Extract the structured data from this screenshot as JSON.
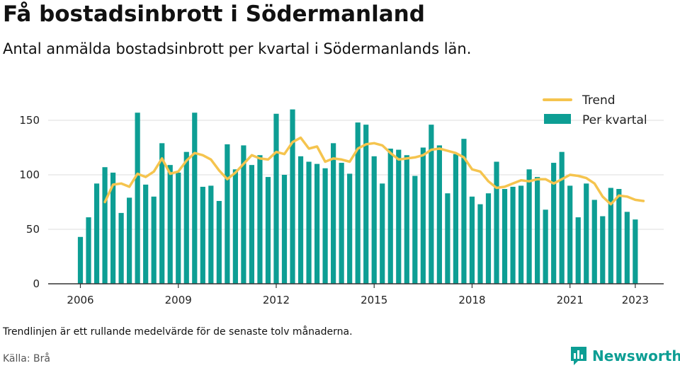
{
  "title": "Få bostadsinbrott i Södermanland",
  "subtitle": "Antal anmälda bostadsinbrott per kvartal i Södermanlands län.",
  "note": "Trendlinjen är ett rullande medelvärde för de senaste tolv månaderna.",
  "source": "Källa: Brå",
  "brand": {
    "name": "Newsworthy",
    "icon": "newsworthy-logo-icon"
  },
  "colors": {
    "bars": "#0d9e94",
    "trend": "#f5c44e",
    "grid": "#dddddd",
    "axis": "#333333"
  },
  "chart_data": {
    "type": "bar",
    "ylim": [
      0,
      170
    ],
    "yticks": [
      0,
      50,
      100,
      150
    ],
    "xticks": [
      "2006",
      "2009",
      "2012",
      "2015",
      "2018",
      "2021",
      "2023"
    ],
    "x_start": "2006 Q1",
    "grid": "horizontal",
    "legend_position": "top-right",
    "legend": [
      "Trend",
      "Per kvartal"
    ],
    "series": [
      {
        "name": "Per kvartal",
        "type": "bar",
        "values": [
          43,
          61,
          92,
          107,
          102,
          65,
          79,
          157,
          91,
          80,
          129,
          109,
          102,
          121,
          157,
          89,
          90,
          76,
          128,
          105,
          127,
          109,
          118,
          98,
          156,
          100,
          160,
          117,
          112,
          110,
          106,
          129,
          111,
          101,
          148,
          146,
          117,
          92,
          124,
          123,
          118,
          99,
          125,
          146,
          127,
          83,
          119,
          133,
          80,
          73,
          83,
          112,
          87,
          89,
          90,
          105,
          98,
          68,
          111,
          121,
          90,
          61,
          92,
          77,
          62,
          88,
          87,
          66,
          59
        ]
      },
      {
        "name": "Trend",
        "type": "line",
        "start_index": 3,
        "values": [
          75,
          91,
          92,
          89,
          101,
          98,
          103,
          115,
          101,
          103,
          113,
          120,
          118,
          114,
          104,
          96,
          102,
          110,
          118,
          115,
          114,
          121,
          119,
          130,
          134,
          124,
          126,
          112,
          115,
          114,
          112,
          124,
          128,
          129,
          127,
          120,
          114,
          115,
          116,
          118,
          123,
          124,
          122,
          120,
          116,
          105,
          103,
          94,
          88,
          89,
          92,
          95,
          94,
          96,
          96,
          92,
          96,
          100,
          99,
          97,
          92,
          80,
          73,
          81,
          80,
          77,
          76
        ]
      }
    ]
  }
}
